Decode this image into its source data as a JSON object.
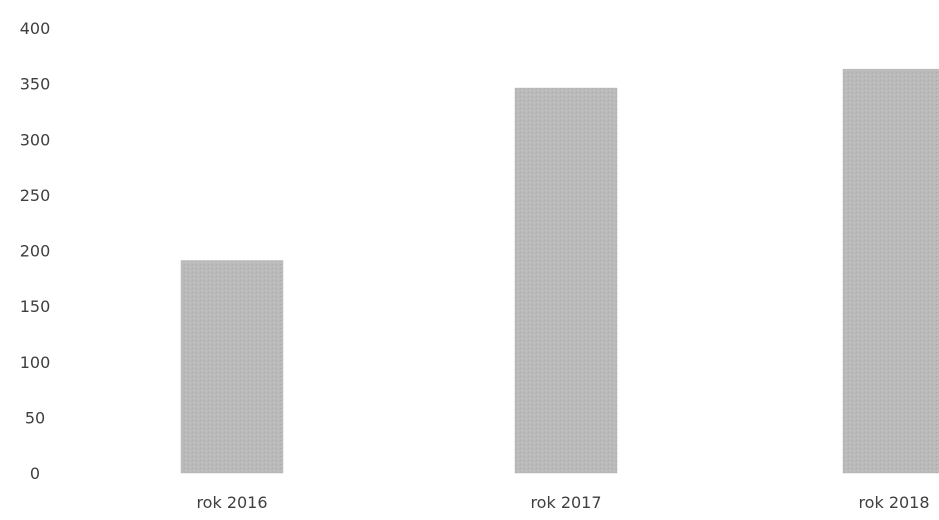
{
  "chart_data": {
    "type": "bar",
    "categories": [
      "rok 2016",
      "rok 2017",
      "rok 2018"
    ],
    "values": [
      191,
      346,
      363
    ],
    "ylim": [
      0,
      400
    ],
    "yticks": [
      0,
      50,
      100,
      150,
      200,
      250,
      300,
      350,
      400
    ],
    "grid": false,
    "legend": "none",
    "title": "",
    "xlabel": "",
    "ylabel": "",
    "colors": {
      "bar": "#b9b9b9",
      "text": "#3f3f3f"
    }
  }
}
